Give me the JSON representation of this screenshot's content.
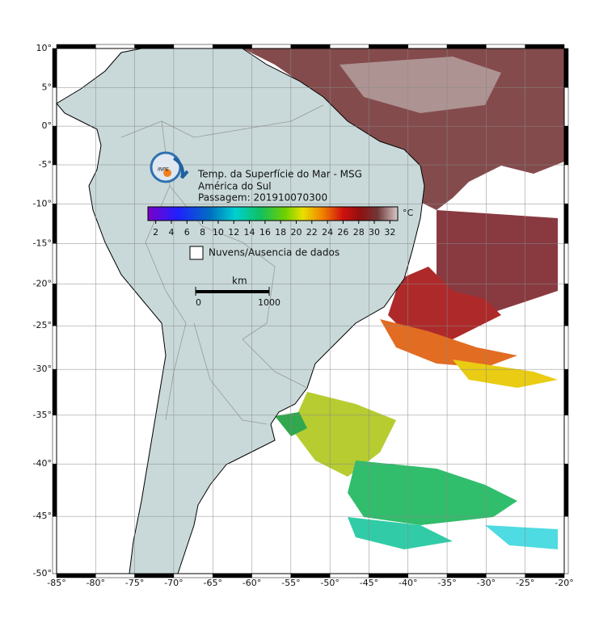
{
  "map": {
    "title": "Temp. da Superfície do Mar - MSG",
    "subtitle": "América do Sul",
    "pass": "Passagem: 201910070300",
    "logo_text": "INPE",
    "colorbar": {
      "range": [
        1,
        33
      ],
      "ticks": [
        2,
        4,
        6,
        8,
        10,
        12,
        14,
        16,
        18,
        20,
        22,
        24,
        26,
        28,
        30,
        32
      ],
      "unit": "°C"
    },
    "legend": "Nuvens/Ausencia de dados",
    "scale": {
      "unit": "km",
      "range": [
        0,
        1000
      ],
      "ticks": [
        0,
        1000
      ]
    },
    "lonlim": [
      -85,
      -20
    ],
    "latlim": [
      10,
      -50
    ],
    "lon_ticks": [
      {
        "value": -85,
        "label": "-85°"
      },
      {
        "value": -80,
        "label": "-80°"
      },
      {
        "value": -75,
        "label": "-75°"
      },
      {
        "value": -70,
        "label": "-70°"
      },
      {
        "value": -65,
        "label": "-65°"
      },
      {
        "value": -60,
        "label": "-60°"
      },
      {
        "value": -55,
        "label": "-55°"
      },
      {
        "value": -50,
        "label": "-50°"
      },
      {
        "value": -45,
        "label": "-45°"
      },
      {
        "value": -40,
        "label": "-40°"
      },
      {
        "value": -35,
        "label": "-35°"
      },
      {
        "value": -30,
        "label": "-30°"
      },
      {
        "value": -25,
        "label": "-25°"
      },
      {
        "value": -20,
        "label": "-20°"
      }
    ],
    "lat_ticks": [
      {
        "value": 10,
        "label": "10°"
      },
      {
        "value": 5,
        "label": "5°"
      },
      {
        "value": 0,
        "label": "0°"
      },
      {
        "value": -5,
        "label": "-5°"
      },
      {
        "value": -10,
        "label": "-10°"
      },
      {
        "value": -15,
        "label": "-15°"
      },
      {
        "value": -20,
        "label": "-20°"
      },
      {
        "value": -25,
        "label": "-25°"
      },
      {
        "value": -30,
        "label": "-30°"
      },
      {
        "value": -35,
        "label": "-35°"
      },
      {
        "value": -40,
        "label": "-40°"
      },
      {
        "value": -45,
        "label": "-45°"
      },
      {
        "value": -50,
        "label": "-50°"
      }
    ]
  }
}
